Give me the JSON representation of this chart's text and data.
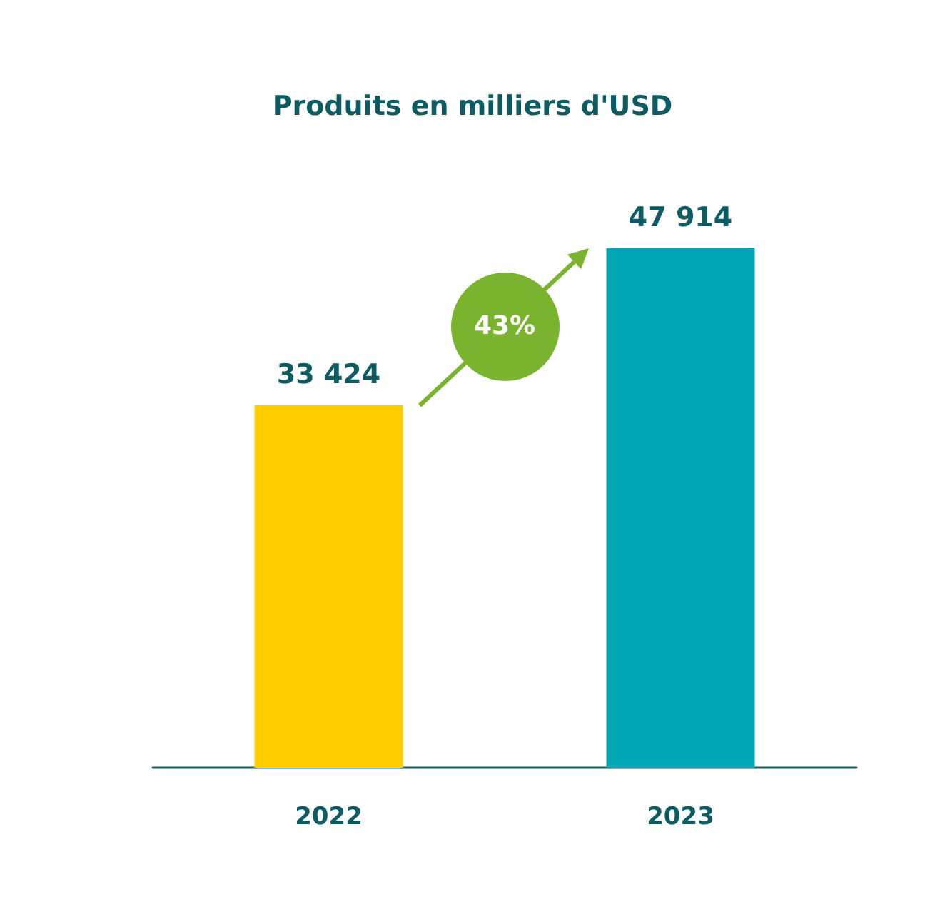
{
  "chart_data": {
    "type": "bar",
    "title": "Produits en milliers d'USD",
    "categories": [
      "2022",
      "2023"
    ],
    "values": [
      33424,
      47914
    ],
    "colors": [
      "#ffcc00",
      "#00a6b4"
    ],
    "value_labels": [
      "33 424",
      "47 914"
    ],
    "annotations": [
      "43%"
    ],
    "grid": false,
    "tick_labels": "x"
  }
}
